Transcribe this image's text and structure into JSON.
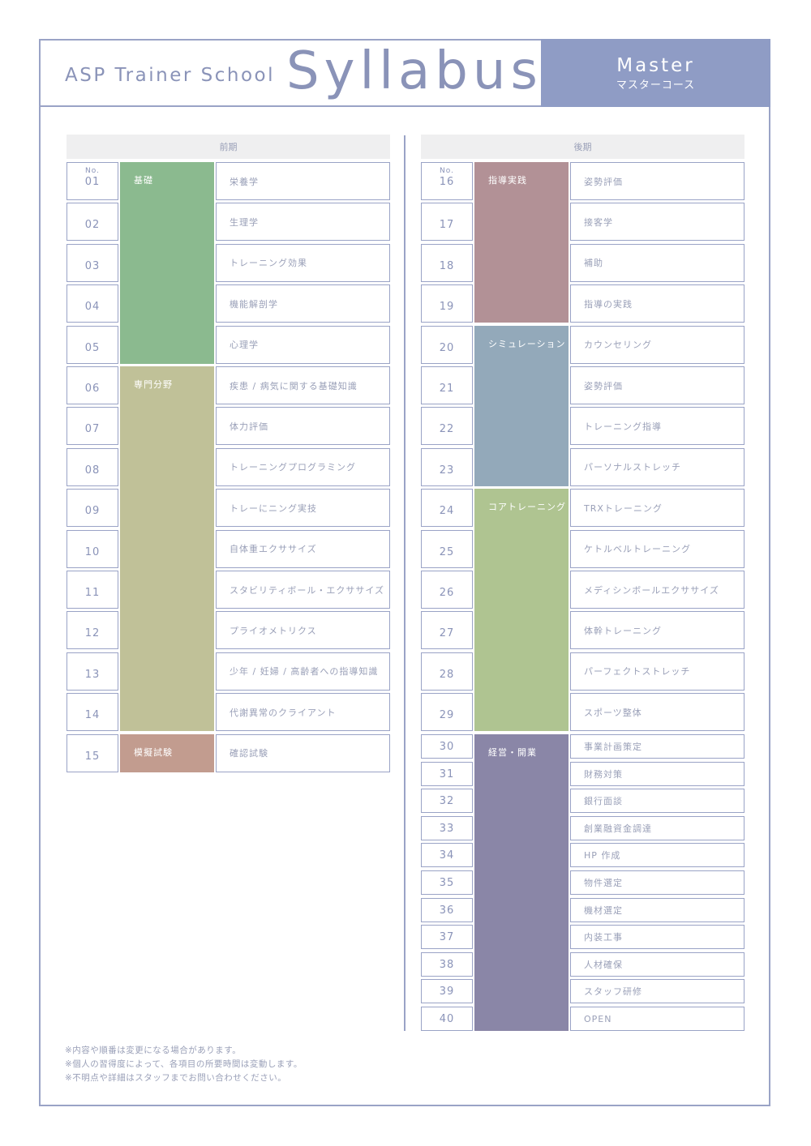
{
  "header": {
    "school": "ASP Trainer School",
    "title": "Syllabus",
    "course_en": "Master",
    "course_ja": "マスターコース"
  },
  "terms": {
    "first": "前期",
    "second": "後期"
  },
  "no_label": "No.",
  "categories": [
    {
      "name": "基礎",
      "from": 1,
      "to": 5,
      "color": "#8bba8f"
    },
    {
      "name": "専門分野",
      "from": 6,
      "to": 14,
      "color": "#c0c198"
    },
    {
      "name": "模擬試験",
      "from": 15,
      "to": 15,
      "color": "#c29c8f"
    },
    {
      "name": "指導実践",
      "from": 16,
      "to": 19,
      "color": "#b29196"
    },
    {
      "name": "シミュレーション",
      "from": 20,
      "to": 23,
      "color": "#93a9ba"
    },
    {
      "name": "コアトレーニング",
      "from": 24,
      "to": 29,
      "color": "#afc491"
    },
    {
      "name": "経営・開業",
      "from": 30,
      "to": 40,
      "color": "#8a86a7"
    }
  ],
  "lessons": [
    {
      "no": "01",
      "subject": "栄養学"
    },
    {
      "no": "02",
      "subject": "生理学"
    },
    {
      "no": "03",
      "subject": "トレーニング効果"
    },
    {
      "no": "04",
      "subject": "機能解剖学"
    },
    {
      "no": "05",
      "subject": "心理学"
    },
    {
      "no": "06",
      "subject": "疾患 / 病気に関する基礎知識"
    },
    {
      "no": "07",
      "subject": "体力評価"
    },
    {
      "no": "08",
      "subject": "トレーニングプログラミング"
    },
    {
      "no": "09",
      "subject": "トレーにニング実技"
    },
    {
      "no": "10",
      "subject": "自体重エクササイズ"
    },
    {
      "no": "11",
      "subject": "スタビリティボール・エクササイズ"
    },
    {
      "no": "12",
      "subject": "プライオメトリクス"
    },
    {
      "no": "13",
      "subject": "少年 / 妊婦 / 高齢者への指導知識"
    },
    {
      "no": "14",
      "subject": "代謝異常のクライアント"
    },
    {
      "no": "15",
      "subject": "確認試験"
    },
    {
      "no": "16",
      "subject": "姿勢評価"
    },
    {
      "no": "17",
      "subject": "接客学"
    },
    {
      "no": "18",
      "subject": "補助"
    },
    {
      "no": "19",
      "subject": "指導の実践"
    },
    {
      "no": "20",
      "subject": "カウンセリング"
    },
    {
      "no": "21",
      "subject": "姿勢評価"
    },
    {
      "no": "22",
      "subject": "トレーニング指導"
    },
    {
      "no": "23",
      "subject": "パーソナルストレッチ"
    },
    {
      "no": "24",
      "subject": "TRXトレーニング"
    },
    {
      "no": "25",
      "subject": "ケトルベルトレーニング"
    },
    {
      "no": "26",
      "subject": "メディシンボールエクササイズ"
    },
    {
      "no": "27",
      "subject": "体幹トレーニング"
    },
    {
      "no": "28",
      "subject": "パーフェクトストレッチ"
    },
    {
      "no": "29",
      "subject": "スポーツ整体"
    },
    {
      "no": "30",
      "subject": "事業計画策定"
    },
    {
      "no": "31",
      "subject": "財務対策"
    },
    {
      "no": "32",
      "subject": "銀行面談"
    },
    {
      "no": "33",
      "subject": "創業融資金調達"
    },
    {
      "no": "34",
      "subject": "HP 作成"
    },
    {
      "no": "35",
      "subject": "物件選定"
    },
    {
      "no": "36",
      "subject": "機材選定"
    },
    {
      "no": "37",
      "subject": "内装工事"
    },
    {
      "no": "38",
      "subject": "人材確保"
    },
    {
      "no": "39",
      "subject": "スタッフ研修"
    },
    {
      "no": "40",
      "subject": "OPEN"
    }
  ],
  "notes": [
    "※内容や順番は変更になる場合があります。",
    "※個人の習得度によって、各項目の所要時間は変動します。",
    "※不明点や詳細はスタッフまでお問い合わせください。"
  ]
}
